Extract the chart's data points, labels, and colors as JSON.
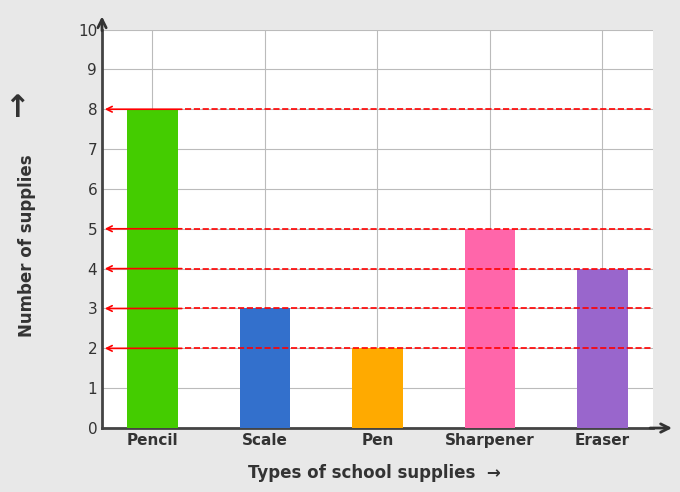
{
  "categories": [
    "Pencil",
    "Scale",
    "Pen",
    "Sharpener",
    "Eraser"
  ],
  "values": [
    8,
    3,
    2,
    5,
    4
  ],
  "bar_colors": [
    "#44CC00",
    "#3370CC",
    "#FFAA00",
    "#FF66AA",
    "#9966CC"
  ],
  "xlabel": "Types of school supplies",
  "ylabel": "Number of supplies",
  "ylim": [
    0,
    10
  ],
  "yticks": [
    0,
    1,
    2,
    3,
    4,
    5,
    6,
    7,
    8,
    9,
    10
  ],
  "background_color": "#e8e8e8",
  "plot_bg_color": "#ffffff",
  "grid_color": "#bbbbbb",
  "dashed_lines": [
    8,
    5,
    4,
    3,
    2
  ],
  "dashed_color": "#ff0000",
  "bar_width": 0.45
}
